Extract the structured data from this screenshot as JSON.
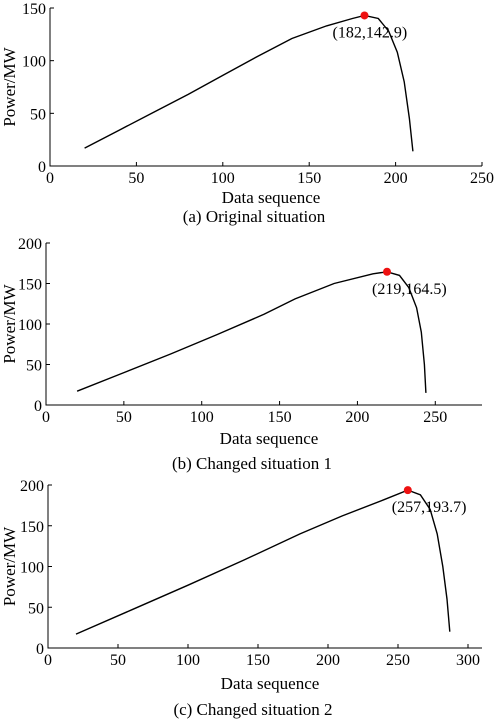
{
  "chart_data": [
    {
      "type": "line",
      "caption": "(a) Original situation",
      "xlabel": "Data sequence",
      "ylabel": "Power/MW",
      "xlim": [
        0,
        250
      ],
      "ylim": [
        0,
        150
      ],
      "xticks": [
        0,
        50,
        100,
        150,
        200,
        250
      ],
      "yticks": [
        0,
        50,
        100,
        150
      ],
      "series": [
        {
          "x": [
            20,
            40,
            60,
            80,
            100,
            120,
            140,
            160,
            175,
            182,
            190,
            196,
            201,
            205,
            208,
            210
          ],
          "y": [
            17,
            34,
            51,
            68,
            86,
            104,
            121,
            133,
            140,
            142.9,
            140,
            128,
            108,
            80,
            45,
            14
          ]
        }
      ],
      "point": {
        "x": 182,
        "y": 142.9,
        "label": "(182,142.9)",
        "color": "#ee1111"
      }
    },
    {
      "type": "line",
      "caption": "(b) Changed situation 1",
      "xlabel": "Data sequence",
      "ylabel": "Power/MW",
      "xlim": [
        0,
        280
      ],
      "ylim": [
        0,
        200
      ],
      "xticks": [
        0,
        50,
        100,
        150,
        200,
        250
      ],
      "yticks": [
        0,
        50,
        100,
        150,
        200
      ],
      "series": [
        {
          "x": [
            20,
            50,
            80,
            110,
            140,
            160,
            185,
            210,
            219,
            227,
            233,
            238,
            241,
            243,
            244
          ],
          "y": [
            17,
            40,
            63,
            87,
            112,
            131,
            150,
            162,
            164.5,
            160,
            145,
            120,
            90,
            50,
            15
          ]
        }
      ],
      "point": {
        "x": 219,
        "y": 164.5,
        "label": "(219,164.5)",
        "color": "#ee1111"
      }
    },
    {
      "type": "line",
      "caption": "(c) Changed situation 2",
      "xlabel": "Data sequence",
      "ylabel": "Power/MW",
      "xlim": [
        0,
        310
      ],
      "ylim": [
        0,
        200
      ],
      "xticks": [
        0,
        50,
        100,
        150,
        200,
        250,
        300
      ],
      "yticks": [
        0,
        50,
        100,
        150,
        200
      ],
      "series": [
        {
          "x": [
            20,
            60,
            100,
            140,
            180,
            210,
            240,
            257,
            266,
            273,
            278,
            282,
            285,
            287
          ],
          "y": [
            17,
            47,
            77,
            108,
            140,
            162,
            182,
            193.7,
            188,
            170,
            140,
            100,
            60,
            20
          ]
        }
      ],
      "point": {
        "x": 257,
        "y": 193.7,
        "label": "(257,193.7)",
        "color": "#ee1111"
      }
    }
  ]
}
